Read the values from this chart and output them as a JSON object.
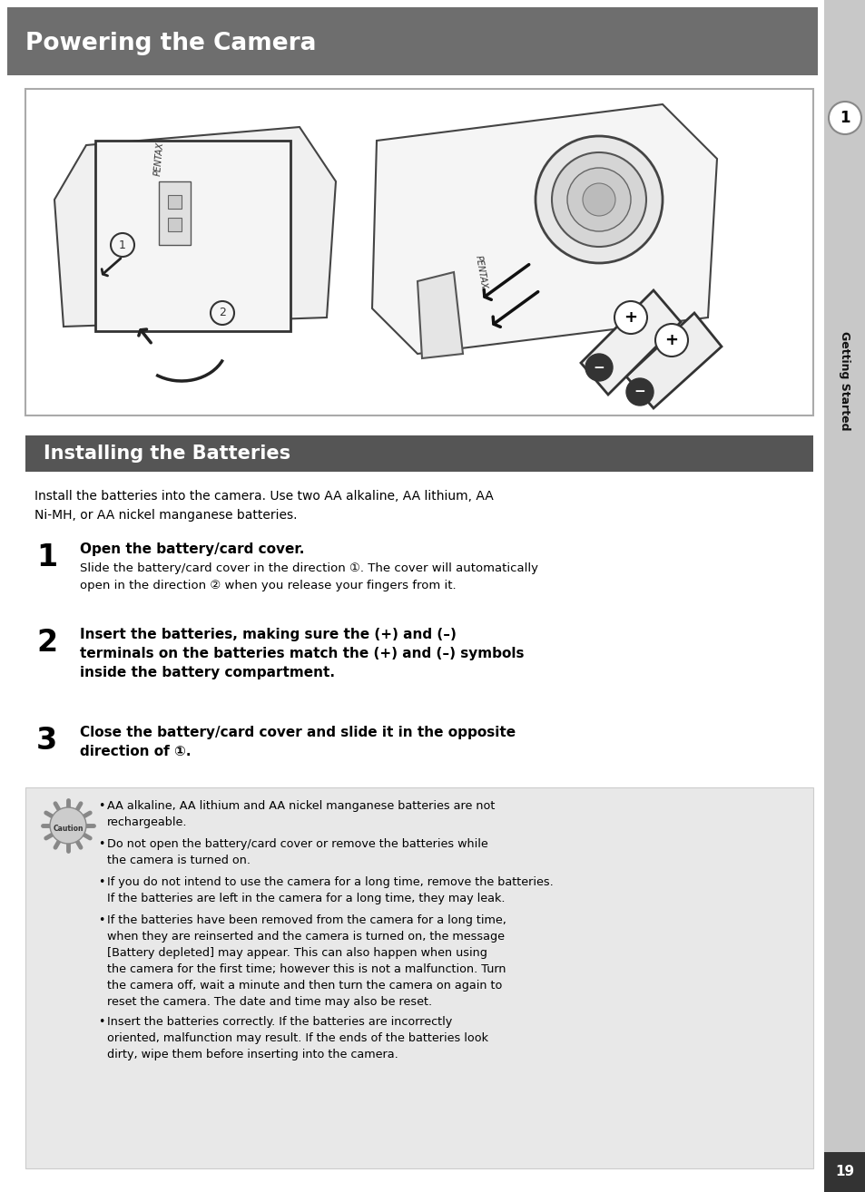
{
  "page_bg": "#d8d8d8",
  "content_bg": "#ffffff",
  "header_bg": "#6e6e6e",
  "header_text": "Powering the Camera",
  "header_text_color": "#ffffff",
  "section_bg": "#555555",
  "section_text": "Installing the Batteries",
  "section_text_color": "#ffffff",
  "caution_bg": "#e8e8e8",
  "right_sidebar_bg": "#c8c8c8",
  "right_tab_text": "Getting Started",
  "right_tab_number": "1",
  "page_number": "19",
  "intro_text": "Install the batteries into the camera. Use two AA alkaline, AA lithium, AA\nNi-MH, or AA nickel manganese batteries.",
  "step1_num": "1",
  "step1_bold": "Open the battery/card cover.",
  "step1_detail": "Slide the battery/card cover in the direction ①. The cover will automatically\nopen in the direction ② when you release your fingers from it.",
  "step2_num": "2",
  "step2_bold": "Insert the batteries, making sure the (+) and (–)\nterminals on the batteries match the (+) and (–) symbols\ninside the battery compartment.",
  "step3_num": "3",
  "step3_bold": "Close the battery/card cover and slide it in the opposite\ndirection of ①.",
  "caution_bullets": [
    "AA alkaline, AA lithium and AA nickel manganese batteries are not\nrechargeable.",
    "Do not open the battery/card cover or remove the batteries while\nthe camera is turned on.",
    "If you do not intend to use the camera for a long time, remove the batteries.\nIf the batteries are left in the camera for a long time, they may leak.",
    "If the batteries have been removed from the camera for a long time,\nwhen they are reinserted and the camera is turned on, the message\n[Battery depleted] may appear. This can also happen when using\nthe camera for the first time; however this is not a malfunction. Turn\nthe camera off, wait a minute and then turn the camera on again to\nreset the camera. The date and time may also be reset.",
    "Insert the batteries correctly. If the batteries are incorrectly\noriented, malfunction may result. If the ends of the batteries look\ndirty, wipe them before inserting into the camera."
  ]
}
